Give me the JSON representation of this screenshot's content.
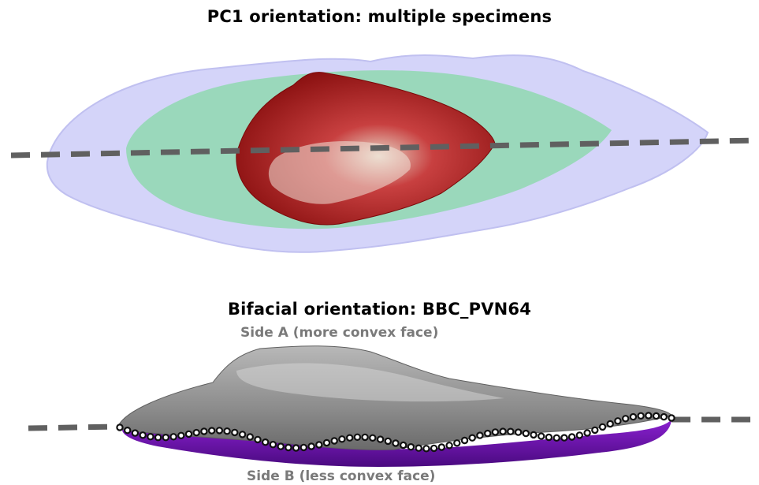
{
  "figure": {
    "top_title": "PC1 orientation: multiple specimens",
    "bottom_title": "Bifacial orientation: BBC_PVN64",
    "side_a_label": "Side A (more convex face)",
    "side_b_label": "Side B (less convex face)"
  },
  "colors": {
    "outer_specimen": "#cfcff8",
    "middle_specimen": "#8fd8b0",
    "inner_specimen": "#b82020",
    "axis_line": "#606060",
    "side_a_surface": "#9a9a9a",
    "side_b_surface": "#7a10c0",
    "edge_points": "#111111",
    "side_labels": "#7a7a7a"
  }
}
